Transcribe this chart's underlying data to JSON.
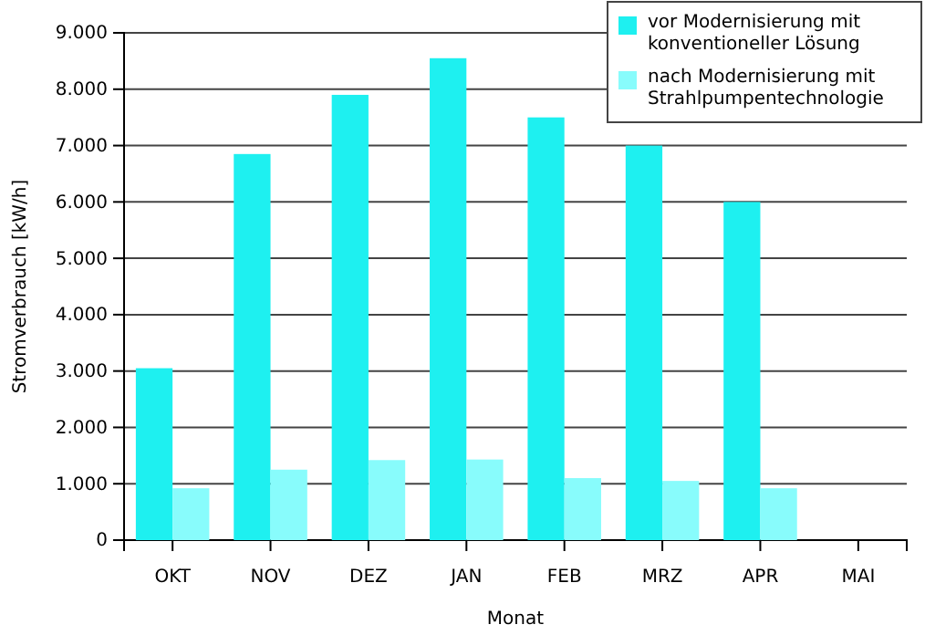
{
  "chart_data": {
    "type": "bar",
    "xlabel": "Monat",
    "ylabel": "Stromverbrauch [kW/h]",
    "categories": [
      "OKT",
      "NOV",
      "DEZ",
      "JAN",
      "FEB",
      "MRZ",
      "APR",
      "MAI"
    ],
    "series": [
      {
        "name": "vor Modernisierung mit konventioneller Lösung",
        "color": "#1ef0f0",
        "values": [
          3050,
          6850,
          7900,
          8550,
          7500,
          7000,
          6000,
          0
        ]
      },
      {
        "name": "nach Modernisierung mit Strahlpumpentechnologie",
        "color": "#88fcfc",
        "values": [
          920,
          1250,
          1420,
          1430,
          1100,
          1050,
          920,
          0
        ]
      }
    ],
    "ylim": [
      0,
      9000
    ],
    "yticks": [
      {
        "value": 0,
        "label": "0"
      },
      {
        "value": 1000,
        "label": "1.000"
      },
      {
        "value": 2000,
        "label": "2.000"
      },
      {
        "value": 3000,
        "label": "3.000"
      },
      {
        "value": 4000,
        "label": "4.000"
      },
      {
        "value": 5000,
        "label": "5.000"
      },
      {
        "value": 6000,
        "label": "6.000"
      },
      {
        "value": 7000,
        "label": "7.000"
      },
      {
        "value": 8000,
        "label": "8.000"
      },
      {
        "value": 9000,
        "label": "9.000"
      }
    ],
    "grid": "y",
    "legend": "top right"
  }
}
